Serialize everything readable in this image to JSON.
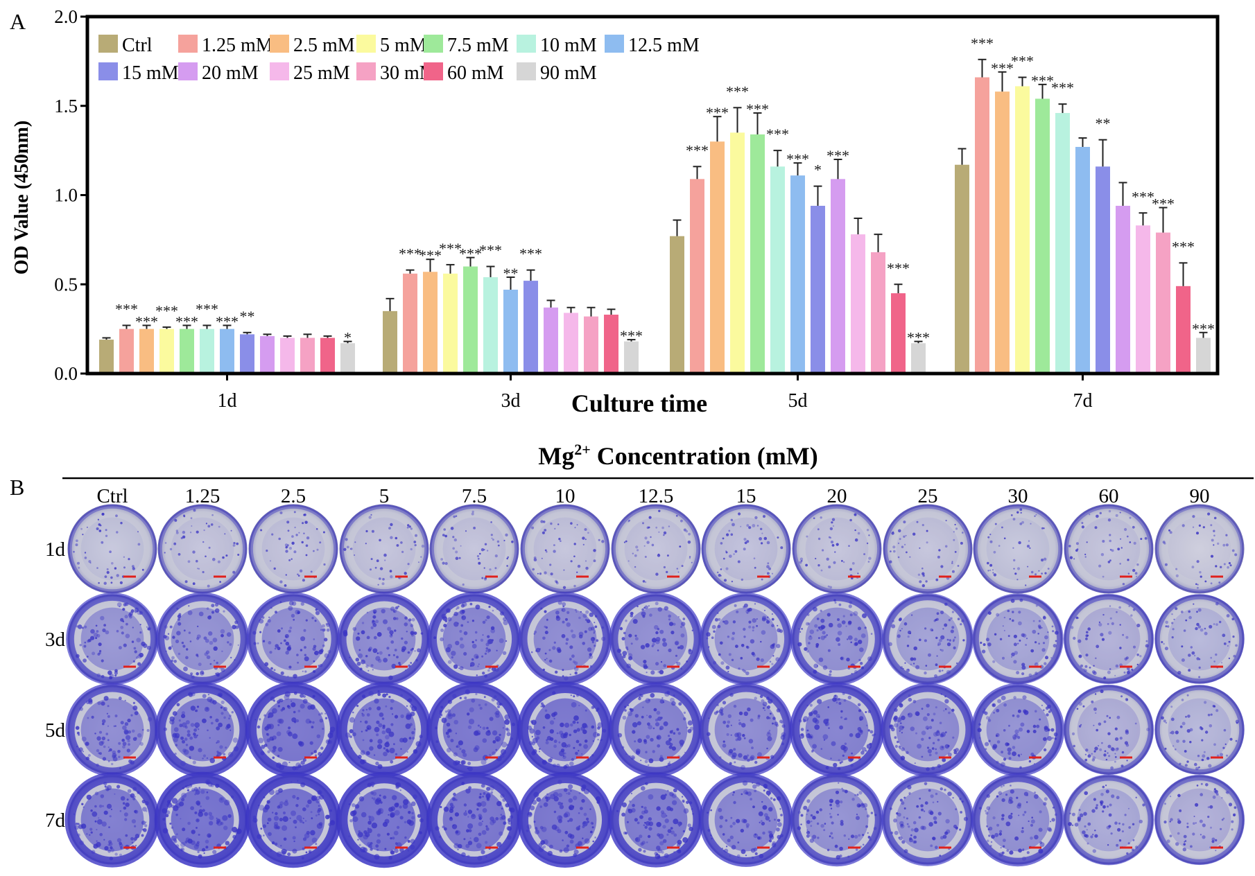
{
  "panel_a_label": "A",
  "panel_b_label": "B",
  "chart_data": {
    "type": "bar",
    "title": "",
    "xlabel": "Culture time",
    "ylabel": "OD Value (450nm)",
    "ylim": [
      0,
      2.0
    ],
    "yticks": [
      "0.0",
      "0.5",
      "1.0",
      "1.5",
      "2.0"
    ],
    "categories": [
      "1d",
      "3d",
      "5d",
      "7d"
    ],
    "legend_position": "top-left",
    "series": [
      {
        "name": "Ctrl",
        "color": "#b8ab76",
        "values": [
          0.19,
          0.35,
          0.77,
          1.17
        ],
        "errors": [
          0.01,
          0.07,
          0.09,
          0.09
        ],
        "sig": [
          "",
          "",
          "",
          ""
        ]
      },
      {
        "name": "1.25 mM",
        "color": "#f5a29c",
        "values": [
          0.25,
          0.56,
          1.09,
          1.66
        ],
        "errors": [
          0.02,
          0.02,
          0.07,
          0.1
        ],
        "sig": [
          "***",
          "***",
          "***",
          "***"
        ]
      },
      {
        "name": "2.5 mM",
        "color": "#f9bd82",
        "values": [
          0.25,
          0.57,
          1.3,
          1.58
        ],
        "errors": [
          0.02,
          0.07,
          0.14,
          0.11
        ],
        "sig": [
          "***",
          "***",
          "***",
          "***"
        ]
      },
      {
        "name": "5 mM",
        "color": "#fbfa9e",
        "values": [
          0.25,
          0.56,
          1.35,
          1.61
        ],
        "errors": [
          0.01,
          0.05,
          0.14,
          0.05
        ],
        "sig": [
          "***",
          "***",
          "***",
          "***"
        ]
      },
      {
        "name": "7.5 mM",
        "color": "#9ee99a",
        "values": [
          0.25,
          0.6,
          1.34,
          1.54
        ],
        "errors": [
          0.02,
          0.05,
          0.12,
          0.08
        ],
        "sig": [
          "***",
          "***",
          "***",
          "***"
        ]
      },
      {
        "name": "10 mM",
        "color": "#b8f2df",
        "values": [
          0.25,
          0.54,
          1.16,
          1.46
        ],
        "errors": [
          0.02,
          0.06,
          0.09,
          0.05
        ],
        "sig": [
          "***",
          "***",
          "***",
          "***"
        ]
      },
      {
        "name": "12.5 mM",
        "color": "#8ebcf0",
        "values": [
          0.25,
          0.47,
          1.11,
          1.27
        ],
        "errors": [
          0.02,
          0.07,
          0.07,
          0.05
        ],
        "sig": [
          "***",
          "**",
          "***",
          ""
        ]
      },
      {
        "name": "15 mM",
        "color": "#8a8ee8",
        "values": [
          0.22,
          0.52,
          0.94,
          1.16
        ],
        "errors": [
          0.01,
          0.06,
          0.11,
          0.15
        ],
        "sig": [
          "**",
          "***",
          "*",
          "**"
        ]
      },
      {
        "name": "20 mM",
        "color": "#d59cf0",
        "values": [
          0.21,
          0.37,
          1.09,
          0.94
        ],
        "errors": [
          0.01,
          0.04,
          0.11,
          0.13
        ],
        "sig": [
          "",
          "",
          "***",
          ""
        ]
      },
      {
        "name": "25 mM",
        "color": "#f5b8ea",
        "values": [
          0.2,
          0.34,
          0.78,
          0.83
        ],
        "errors": [
          0.01,
          0.03,
          0.09,
          0.07
        ],
        "sig": [
          "",
          "",
          "",
          "***"
        ]
      },
      {
        "name": "30 mM",
        "color": "#f5a2c4",
        "values": [
          0.2,
          0.32,
          0.68,
          0.79
        ],
        "errors": [
          0.02,
          0.05,
          0.1,
          0.14
        ],
        "sig": [
          "",
          "",
          "",
          "***"
        ]
      },
      {
        "name": "60 mM",
        "color": "#f06489",
        "values": [
          0.2,
          0.33,
          0.45,
          0.49
        ],
        "errors": [
          0.01,
          0.03,
          0.05,
          0.13
        ],
        "sig": [
          "",
          "",
          "***",
          "***"
        ]
      },
      {
        "name": "90 mM",
        "color": "#d6d6d6",
        "values": [
          0.17,
          0.18,
          0.17,
          0.2
        ],
        "errors": [
          0.01,
          0.01,
          0.01,
          0.03
        ],
        "sig": [
          "*",
          "***",
          "***",
          "***"
        ]
      }
    ]
  },
  "panel_b": {
    "title_prefix": "Mg",
    "title_sup": "2+",
    "title_suffix": " Concentration (mM)",
    "columns": [
      "Ctrl",
      "1.25",
      "2.5",
      "5",
      "7.5",
      "10",
      "12.5",
      "15",
      "20",
      "25",
      "30",
      "60",
      "90"
    ],
    "rows": [
      "1d",
      "3d",
      "5d",
      "7d"
    ],
    "stain_color": "#3b35c4",
    "background_color": "#c9cad8",
    "scale_bar_color": "#e0201c",
    "stain_density": [
      [
        0.1,
        0.12,
        0.12,
        0.12,
        0.12,
        0.12,
        0.12,
        0.15,
        0.12,
        0.12,
        0.1,
        0.12,
        0.04
      ],
      [
        0.55,
        0.6,
        0.62,
        0.65,
        0.7,
        0.65,
        0.62,
        0.55,
        0.6,
        0.45,
        0.4,
        0.3,
        0.25
      ],
      [
        0.65,
        0.8,
        0.85,
        0.82,
        0.85,
        0.85,
        0.75,
        0.65,
        0.75,
        0.65,
        0.6,
        0.3,
        0.25
      ],
      [
        0.8,
        0.9,
        0.9,
        0.9,
        0.85,
        0.85,
        0.8,
        0.7,
        0.6,
        0.55,
        0.6,
        0.35,
        0.3
      ]
    ]
  }
}
